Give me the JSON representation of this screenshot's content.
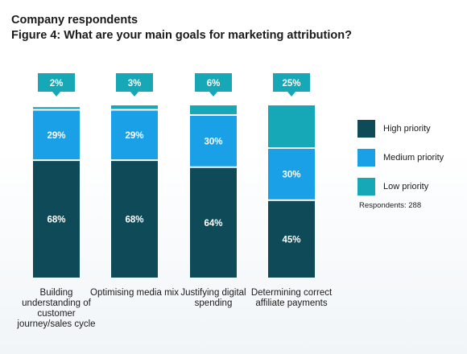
{
  "header": {
    "title": "Company respondents",
    "subtitle": "Figure 4: What are your main goals for marketing attribution?"
  },
  "chart_data": {
    "type": "bar",
    "stacked": true,
    "categories": [
      "Building understanding of customer journey/sales cycle",
      "Optimising media mix",
      "Justifying digital spending",
      "Determining correct affiliate payments"
    ],
    "series": [
      {
        "name": "High priority",
        "color": "#0e4a57",
        "values": [
          68,
          68,
          64,
          45
        ]
      },
      {
        "name": "Medium priority",
        "color": "#1aa0e6",
        "values": [
          29,
          29,
          30,
          30
        ]
      },
      {
        "name": "Low priority",
        "color": "#17a8b8",
        "values": [
          2,
          3,
          6,
          25
        ]
      }
    ],
    "data_labels": {
      "High priority": [
        "68%",
        "68%",
        "64%",
        "45%"
      ],
      "Medium priority": [
        "29%",
        "29%",
        "30%",
        "30%"
      ],
      "Low priority": [
        "2%",
        "3%",
        "6%",
        "25%"
      ]
    },
    "ylim": [
      0,
      100
    ],
    "legend_position": "right",
    "grid": false
  },
  "legend": {
    "items": [
      {
        "label": "High priority",
        "color": "#0e4a57"
      },
      {
        "label": "Medium priority",
        "color": "#1aa0e6"
      },
      {
        "label": "Low priority",
        "color": "#17a8b8"
      }
    ]
  },
  "note": "Respondents: 288",
  "category_labels": [
    "Building understanding of customer journey/sales cycle",
    "Optimising media mix",
    "Justifying digital spending",
    "Determining correct affiliate payments"
  ]
}
